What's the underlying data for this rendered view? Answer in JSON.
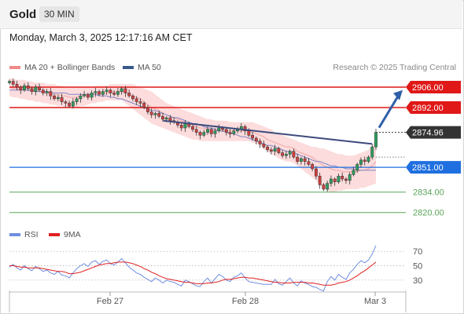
{
  "header": {
    "symbol": "Gold",
    "timeframe": "30 MIN"
  },
  "timestamp": "Monday, March 3, 2025 12:17:16 AM CET",
  "legend_main": [
    {
      "label": "MA 20 + Bollinger Bands",
      "color": "#f08a8a"
    },
    {
      "label": "MA 50",
      "color": "#3a5a8c"
    }
  ],
  "legend_rsi": [
    {
      "label": "RSI",
      "color": "#6f8fe0"
    },
    {
      "label": "9MA",
      "color": "#e02020"
    }
  ],
  "copyright": "Research © 2025 Trading Central",
  "chart_data": {
    "type": "candlestick",
    "x_labels": [
      "Feb 27",
      "Feb 28",
      "Mar 3"
    ],
    "price_ylim": [
      2815,
      2913
    ],
    "levels": [
      {
        "label": "2906.00",
        "value": 2906.0,
        "kind": "resistance",
        "color": "#e01818"
      },
      {
        "label": "2892.00",
        "value": 2892.0,
        "kind": "resistance",
        "color": "#e01818"
      },
      {
        "label": "2874.96",
        "value": 2874.96,
        "kind": "last-price",
        "color": "#333333"
      },
      {
        "label": "2851.00",
        "value": 2851.0,
        "kind": "pivot",
        "color": "#1f6fe0"
      },
      {
        "label": "2834.00",
        "value": 2834.0,
        "kind": "support",
        "color": "#5aa55a"
      },
      {
        "label": "2820.00",
        "value": 2820.0,
        "kind": "support",
        "color": "#5aa55a"
      }
    ],
    "closes": [
      2910,
      2908,
      2906,
      2904,
      2907,
      2905,
      2903,
      2906,
      2904,
      2902,
      2903,
      2900,
      2898,
      2899,
      2896,
      2895,
      2893,
      2896,
      2898,
      2900,
      2901,
      2899,
      2902,
      2903,
      2901,
      2903,
      2904,
      2902,
      2901,
      2903,
      2905,
      2902,
      2900,
      2898,
      2896,
      2895,
      2892,
      2889,
      2887,
      2888,
      2886,
      2884,
      2885,
      2883,
      2882,
      2880,
      2878,
      2881,
      2879,
      2877,
      2875,
      2873,
      2875,
      2877,
      2874,
      2876,
      2878,
      2877,
      2875,
      2874,
      2876,
      2877,
      2879,
      2876,
      2873,
      2871,
      2869,
      2867,
      2865,
      2863,
      2862,
      2864,
      2861,
      2859,
      2860,
      2862,
      2858,
      2855,
      2857,
      2855,
      2853,
      2850,
      2845,
      2839,
      2836,
      2840,
      2843,
      2841,
      2845,
      2843,
      2842,
      2846,
      2849,
      2853,
      2856,
      2855,
      2858,
      2865,
      2875
    ],
    "ma20": [
      2906,
      2905,
      2905,
      2904,
      2904,
      2904,
      2903,
      2903,
      2903,
      2902,
      2902,
      2902,
      2901,
      2901,
      2900,
      2900,
      2899,
      2899,
      2899,
      2900,
      2900,
      2900,
      2901,
      2901,
      2902,
      2902,
      2902,
      2902,
      2903,
      2903,
      2903,
      2902,
      2901,
      2900,
      2899,
      2898,
      2896,
      2894,
      2892,
      2891,
      2890,
      2888,
      2887,
      2886,
      2885,
      2884,
      2883,
      2882,
      2881,
      2880,
      2879,
      2878,
      2878,
      2877,
      2877,
      2877,
      2877,
      2877,
      2876,
      2876,
      2876,
      2876,
      2876,
      2876,
      2876,
      2875,
      2874,
      2873,
      2872,
      2870,
      2869,
      2868,
      2867,
      2866,
      2865,
      2865,
      2864,
      2862,
      2861,
      2860,
      2859,
      2858,
      2856,
      2854,
      2852,
      2851,
      2850,
      2849,
      2849,
      2848,
      2848,
      2848,
      2848,
      2848,
      2849,
      2849,
      2850,
      2852,
      2855
    ],
    "bb_upper": [
      2912,
      2912,
      2911,
      2911,
      2911,
      2910,
      2910,
      2909,
      2909,
      2909,
      2908,
      2908,
      2908,
      2907,
      2907,
      2906,
      2906,
      2906,
      2906,
      2906,
      2906,
      2906,
      2906,
      2907,
      2907,
      2907,
      2907,
      2908,
      2908,
      2908,
      2908,
      2908,
      2908,
      2908,
      2907,
      2906,
      2905,
      2904,
      2903,
      2901,
      2899,
      2897,
      2895,
      2894,
      2893,
      2892,
      2891,
      2890,
      2889,
      2888,
      2887,
      2886,
      2885,
      2884,
      2884,
      2883,
      2883,
      2883,
      2883,
      2882,
      2882,
      2882,
      2882,
      2882,
      2882,
      2882,
      2881,
      2880,
      2879,
      2878,
      2877,
      2875,
      2874,
      2873,
      2872,
      2871,
      2870,
      2869,
      2868,
      2867,
      2866,
      2865,
      2865,
      2864,
      2864,
      2863,
      2862,
      2861,
      2860,
      2860,
      2859,
      2859,
      2859,
      2860,
      2861,
      2862,
      2863,
      2866,
      2870
    ],
    "bb_lower": [
      2900,
      2899,
      2899,
      2898,
      2898,
      2897,
      2897,
      2896,
      2896,
      2895,
      2895,
      2894,
      2894,
      2893,
      2893,
      2892,
      2892,
      2892,
      2892,
      2893,
      2893,
      2894,
      2895,
      2895,
      2896,
      2896,
      2897,
      2897,
      2897,
      2897,
      2897,
      2895,
      2893,
      2891,
      2889,
      2887,
      2885,
      2883,
      2881,
      2880,
      2879,
      2878,
      2877,
      2876,
      2875,
      2874,
      2873,
      2872,
      2871,
      2870,
      2870,
      2869,
      2869,
      2869,
      2869,
      2869,
      2869,
      2869,
      2869,
      2869,
      2869,
      2869,
      2869,
      2869,
      2869,
      2868,
      2867,
      2866,
      2864,
      2862,
      2860,
      2859,
      2857,
      2856,
      2855,
      2855,
      2854,
      2852,
      2850,
      2848,
      2846,
      2844,
      2842,
      2839,
      2837,
      2835,
      2834,
      2834,
      2835,
      2835,
      2836,
      2836,
      2836,
      2836,
      2837,
      2837,
      2838,
      2839,
      2840
    ],
    "ma50": [
      2904,
      2904,
      2904,
      2904,
      2904,
      2904,
      2904,
      2903,
      2903,
      2903,
      2903,
      2902,
      2902,
      2902,
      2902,
      2902,
      2901,
      2901,
      2901,
      2901,
      2901,
      2901,
      2901,
      2901,
      2900,
      2900,
      2900,
      2899,
      2899,
      2898,
      2898,
      2897,
      2896,
      2895,
      2894,
      2893,
      2892,
      2891,
      2890,
      2890,
      2889,
      2888,
      2887,
      2886,
      2885,
      2885,
      2884,
      2883,
      2882,
      2881,
      2881,
      2880,
      2879,
      2878,
      2878,
      2877,
      2876,
      2876,
      2875,
      2874,
      2874,
      2873,
      2872,
      2872,
      2871,
      2870,
      2869,
      2868,
      2867,
      2866,
      2866,
      2865,
      2864,
      2863,
      2862,
      2862,
      2861,
      2860,
      2859,
      2858,
      2857,
      2856,
      2855,
      2855,
      2854,
      2853,
      2852,
      2852,
      2851,
      2851,
      2850,
      2850,
      2850,
      2849,
      2849,
      2849,
      2849,
      2849,
      2849
    ],
    "trendline": {
      "from": [
        0.42,
        2883
      ],
      "to": [
        0.99,
        2867
      ]
    },
    "forecast_arrow": {
      "from": 2874.96,
      "to": 2904
    },
    "rsi": {
      "ylim": [
        20,
        80
      ],
      "ticks": [
        "70",
        "50",
        "30"
      ],
      "values": [
        48,
        52,
        47,
        44,
        50,
        46,
        43,
        49,
        46,
        42,
        44,
        40,
        38,
        42,
        37,
        36,
        33,
        40,
        46,
        50,
        53,
        49,
        55,
        57,
        52,
        56,
        58,
        53,
        51,
        55,
        60,
        54,
        48,
        44,
        40,
        38,
        34,
        31,
        28,
        33,
        30,
        26,
        30,
        28,
        27,
        24,
        22,
        30,
        28,
        25,
        22,
        21,
        28,
        33,
        26,
        32,
        38,
        35,
        30,
        28,
        34,
        36,
        40,
        33,
        28,
        27,
        26,
        25,
        24,
        24,
        24,
        31,
        25,
        23,
        28,
        33,
        26,
        22,
        29,
        26,
        24,
        21,
        20,
        17,
        15,
        28,
        35,
        30,
        38,
        34,
        31,
        40,
        45,
        52,
        57,
        54,
        58,
        66,
        78
      ],
      "ma9": [
        50,
        50,
        49,
        48,
        48,
        47,
        47,
        47,
        47,
        46,
        45,
        44,
        43,
        42,
        42,
        41,
        39,
        39,
        40,
        41,
        43,
        45,
        47,
        49,
        51,
        52,
        53,
        53,
        54,
        55,
        55,
        55,
        54,
        53,
        51,
        49,
        46,
        44,
        41,
        39,
        36,
        34,
        32,
        31,
        30,
        29,
        28,
        27,
        27,
        26,
        25,
        25,
        25,
        26,
        26,
        27,
        28,
        30,
        31,
        31,
        32,
        33,
        34,
        34,
        33,
        33,
        32,
        31,
        30,
        29,
        28,
        27,
        27,
        26,
        26,
        26,
        27,
        27,
        27,
        27,
        26,
        26,
        25,
        24,
        23,
        23,
        23,
        24,
        26,
        27,
        28,
        30,
        33,
        36,
        40,
        43,
        47,
        51,
        55
      ]
    }
  }
}
